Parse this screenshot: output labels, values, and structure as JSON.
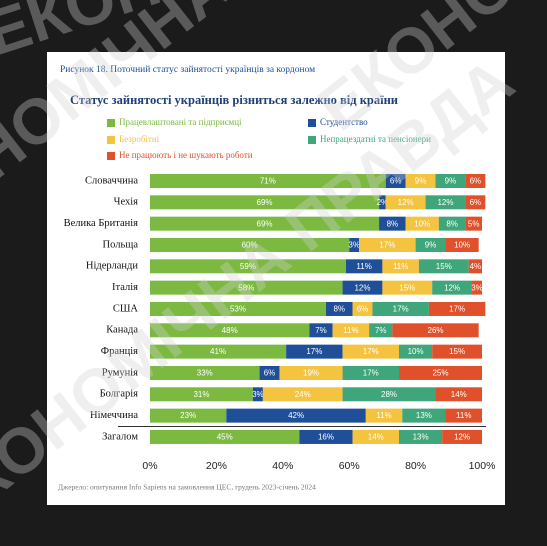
{
  "chart_data": {
    "type": "stacked-bar-horizontal",
    "figure_caption": "Рисунок 18. Поточний статус зайнятості українців за кордоном",
    "title": "Статус зайнятості українців різниться залежно від країни",
    "source": "Джерело: опитування Info Sapiens на замовлення ЦЕС, грудень 2023-січень 2024",
    "watermark": "ЕКОНОМІЧНА ПРАВДА",
    "categories": [
      "Словаччина",
      "Чехія",
      "Велика Британія",
      "Польща",
      "Нідерланди",
      "Італія",
      "США",
      "Канада",
      "Франція",
      "Румунія",
      "Болгарія",
      "Німеччина",
      "Загалом"
    ],
    "series": [
      {
        "name": "Працевлаштовані та підприємці",
        "color": "#7cb940",
        "values": [
          71,
          69,
          69,
          60,
          59,
          58,
          53,
          48,
          41,
          33,
          31,
          23,
          45
        ],
        "value_labels": [
          "71%",
          "69%",
          "69%",
          "60%",
          "59%",
          "58%",
          "53%",
          "48%",
          "41%",
          "33%",
          "31%",
          "23%",
          "45%"
        ]
      },
      {
        "name": "Студентство",
        "color": "#1f4f99",
        "values": [
          6,
          2,
          8,
          3,
          11,
          12,
          8,
          7,
          17,
          6,
          3,
          42,
          16
        ],
        "value_labels": [
          "6%",
          "2%",
          "8%",
          "3%",
          "11%",
          "12%",
          "8%",
          "7%",
          "17%",
          "6%",
          "3%",
          "42%",
          "16%"
        ]
      },
      {
        "name": "Безробітні",
        "color": "#f4c33f",
        "values": [
          9,
          12,
          10,
          17,
          11,
          15,
          6,
          11,
          17,
          19,
          24,
          11,
          14
        ],
        "value_labels": [
          "9%",
          "12%",
          "10%",
          "17%",
          "11%",
          "15%",
          "6%",
          "11%",
          "17%",
          "19%",
          "24%",
          "11%",
          "14%"
        ]
      },
      {
        "name": "Непрацездатні та пенсіонери",
        "color": "#3fa57a",
        "values": [
          9,
          12,
          8,
          9,
          15,
          12,
          17,
          7,
          10,
          17,
          28,
          13,
          13
        ],
        "value_labels": [
          "9%",
          "12%",
          "8%",
          "9%",
          "15%",
          "12%",
          "17%",
          "7%",
          "10%",
          "17%",
          "28%",
          "13%",
          "13%"
        ]
      },
      {
        "name": "Не працюють і не шукають роботи",
        "color": "#e0512b",
        "values": [
          6,
          6,
          5,
          10,
          4,
          3,
          17,
          26,
          15,
          25,
          14,
          11,
          12
        ],
        "value_labels": [
          "6%",
          "6%",
          "5%",
          "10%",
          "4%",
          "3%",
          "17%",
          "26%",
          "15%",
          "25%",
          "14%",
          "11%",
          "12%"
        ]
      }
    ],
    "xlim": [
      0,
      100
    ],
    "xticks": [
      {
        "value": 0,
        "label": "0%"
      },
      {
        "value": 20,
        "label": "20%"
      },
      {
        "value": 40,
        "label": "40%"
      },
      {
        "value": 60,
        "label": "60%"
      },
      {
        "value": 80,
        "label": "80%"
      },
      {
        "value": 100,
        "label": "100%"
      }
    ]
  }
}
